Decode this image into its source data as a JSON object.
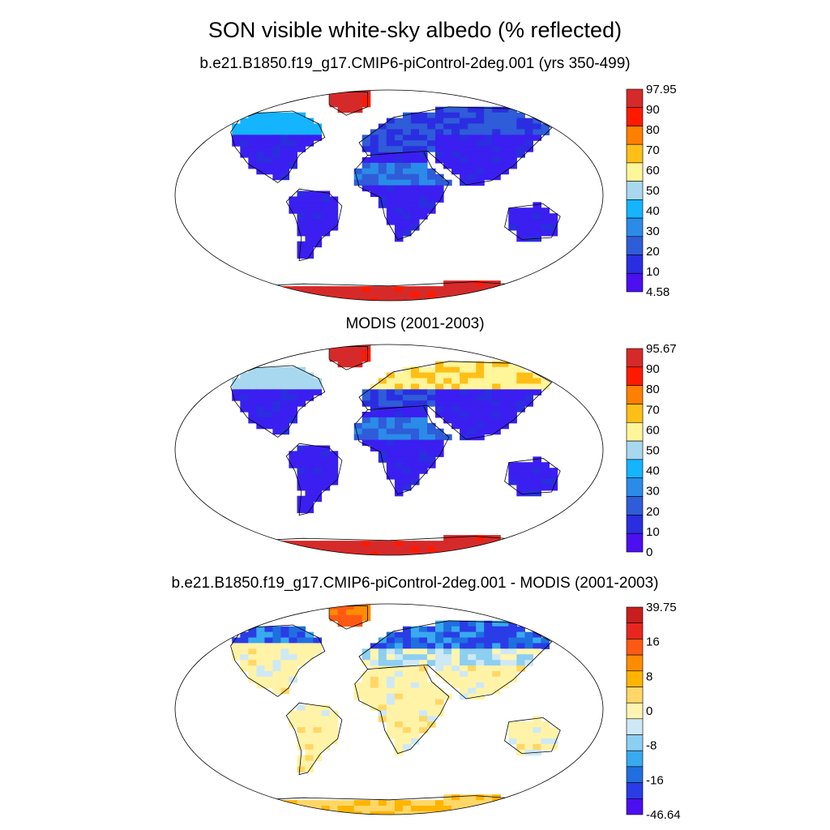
{
  "title": "SON visible white-sky albedo (% reflected)",
  "panels": [
    {
      "subtitle": "b.e21.B1850.f19_g17.CMIP6-piControl-2deg.001 (yrs 350-499)",
      "colorbar": {
        "labels": [
          "97.95",
          "90",
          "80",
          "70",
          "60",
          "50",
          "40",
          "30",
          "20",
          "10",
          "4.58"
        ],
        "colors": [
          "#d62a2a",
          "#ff1a00",
          "#ff7f00",
          "#ffbf17",
          "#fff599",
          "#a8d8f0",
          "#14b4ff",
          "#2b8be8",
          "#2f5cd9",
          "#2a2ee0",
          "#4b0ff0"
        ]
      }
    },
    {
      "subtitle": "MODIS (2001-2003)",
      "colorbar": {
        "labels": [
          "95.67",
          "90",
          "80",
          "70",
          "60",
          "50",
          "40",
          "30",
          "20",
          "10",
          "0"
        ],
        "colors": [
          "#d62a2a",
          "#ff1a00",
          "#ff7f00",
          "#ffbf17",
          "#fff599",
          "#a8d8f0",
          "#14b4ff",
          "#2b8be8",
          "#2f5cd9",
          "#2a2ee0",
          "#4b0ff0"
        ]
      }
    },
    {
      "subtitle": "b.e21.B1850.f19_g17.CMIP6-piControl-2deg.001 - MODIS (2001-2003)",
      "colorbar": {
        "labels": [
          "39.75",
          "",
          "16",
          "",
          "8",
          "",
          "0",
          "",
          "-8",
          "",
          "-16",
          "",
          "-46.64"
        ],
        "colors": [
          "#c81e1e",
          "#e8261f",
          "#ff5a14",
          "#ff8c00",
          "#ffb400",
          "#ffd766",
          "#fff5b0",
          "#cfe8f5",
          "#8dcff0",
          "#39a9f0",
          "#1f6fe0",
          "#2a3ce6",
          "#4b0ff0"
        ]
      }
    }
  ],
  "legend_colors": {
    "land_low": "#3a1ff0",
    "ice": "#d42a2a",
    "diff_base": "#fff3a8"
  }
}
